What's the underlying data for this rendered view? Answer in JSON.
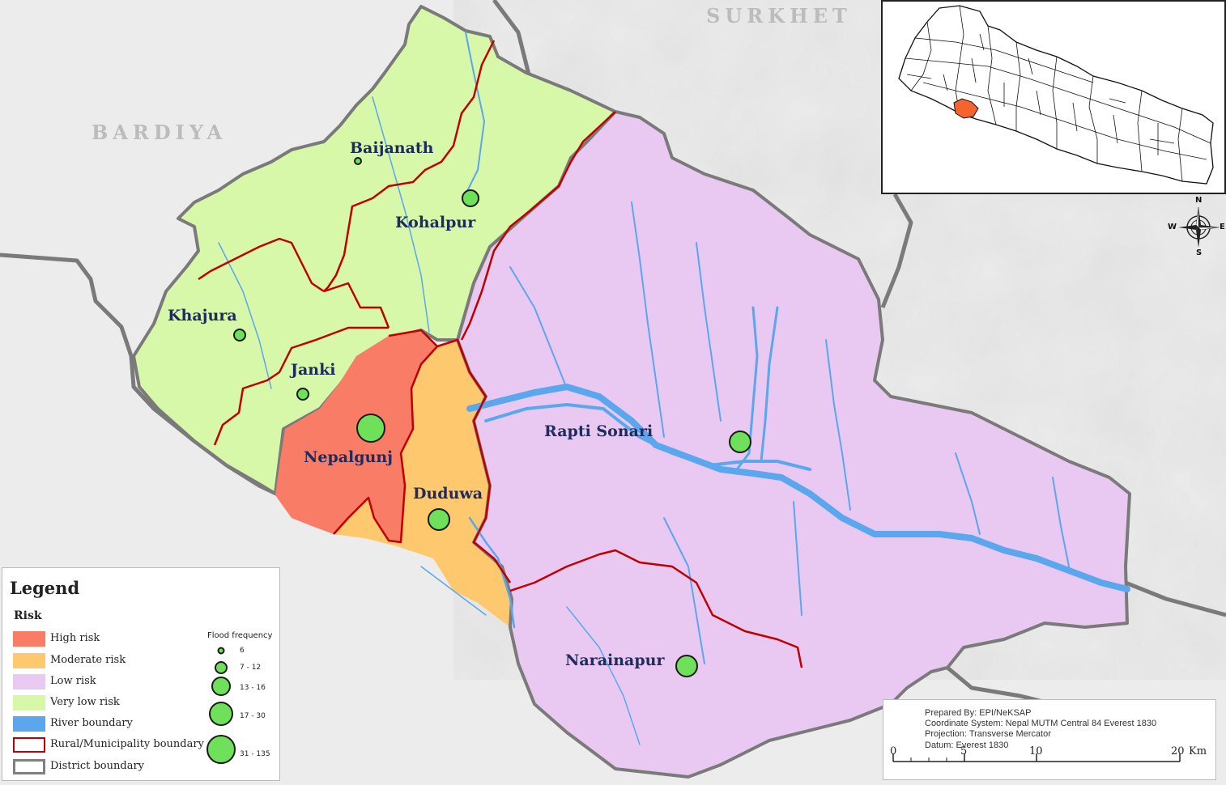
{
  "map": {
    "regions": {
      "north": "SURKHET",
      "west": "BARDIYA"
    },
    "municipalities": [
      {
        "name": "Baijanath",
        "risk": "Very low risk",
        "flood_frequency_class": "6"
      },
      {
        "name": "Kohalpur",
        "risk": "Very low risk",
        "flood_frequency_class": "13 - 16"
      },
      {
        "name": "Khajura",
        "risk": "Very low risk",
        "flood_frequency_class": "7 - 12"
      },
      {
        "name": "Janki",
        "risk": "Very low risk",
        "flood_frequency_class": "7 - 12"
      },
      {
        "name": "Nepalgunj",
        "risk": "High risk",
        "flood_frequency_class": "31 - 135"
      },
      {
        "name": "Duduwa",
        "risk": "Moderate risk",
        "flood_frequency_class": "17 - 30"
      },
      {
        "name": "Rapti Sonari",
        "risk": "Low risk",
        "flood_frequency_class": "17 - 30"
      },
      {
        "name": "Narainapur",
        "risk": "Low risk",
        "flood_frequency_class": "17 - 30"
      }
    ],
    "colors": {
      "high_risk": "#f97c66",
      "moderate_risk": "#fdc86e",
      "low_risk": "#e9c9f2",
      "very_low_risk": "#d7f7a9",
      "river": "#5aa7ee",
      "municipality_boundary": "#c00000",
      "district_boundary": "#808080",
      "highlight_district": "#f5642e"
    }
  },
  "legend": {
    "title": "Legend",
    "risk_heading": "Risk",
    "items": [
      {
        "label": "High risk",
        "color": "#f97c66"
      },
      {
        "label": "Moderate risk",
        "color": "#fdc86e"
      },
      {
        "label": "Low  risk",
        "color": "#e9c9f2"
      },
      {
        "label": "Very low  risk",
        "color": "#d7f7a9"
      },
      {
        "label": "River boundary",
        "color": "#5aa7ee"
      },
      {
        "label": "Rural/Municipality boundary",
        "color": "#c00000"
      },
      {
        "label": "District boundary",
        "color": "#808080"
      }
    ],
    "flood_frequency": {
      "title": "Flood frequency",
      "classes": [
        "6",
        "7 - 12",
        "13 - 16",
        "17 - 30",
        "31 - 135"
      ]
    }
  },
  "credits": {
    "prepared_by": "Prepared By: EPI/NeKSAP",
    "coordinate_system": "Coordinate System: Nepal MUTM Central 84 Everest 1830",
    "projection": "Projection: Transverse Mercator",
    "datum": "Datum: Everest 1830"
  },
  "scale_bar": {
    "ticks": [
      "0",
      "5",
      "10",
      "20"
    ],
    "unit": "Km"
  },
  "compass": {
    "n": "N",
    "s": "S",
    "e": "E",
    "w": "W"
  }
}
